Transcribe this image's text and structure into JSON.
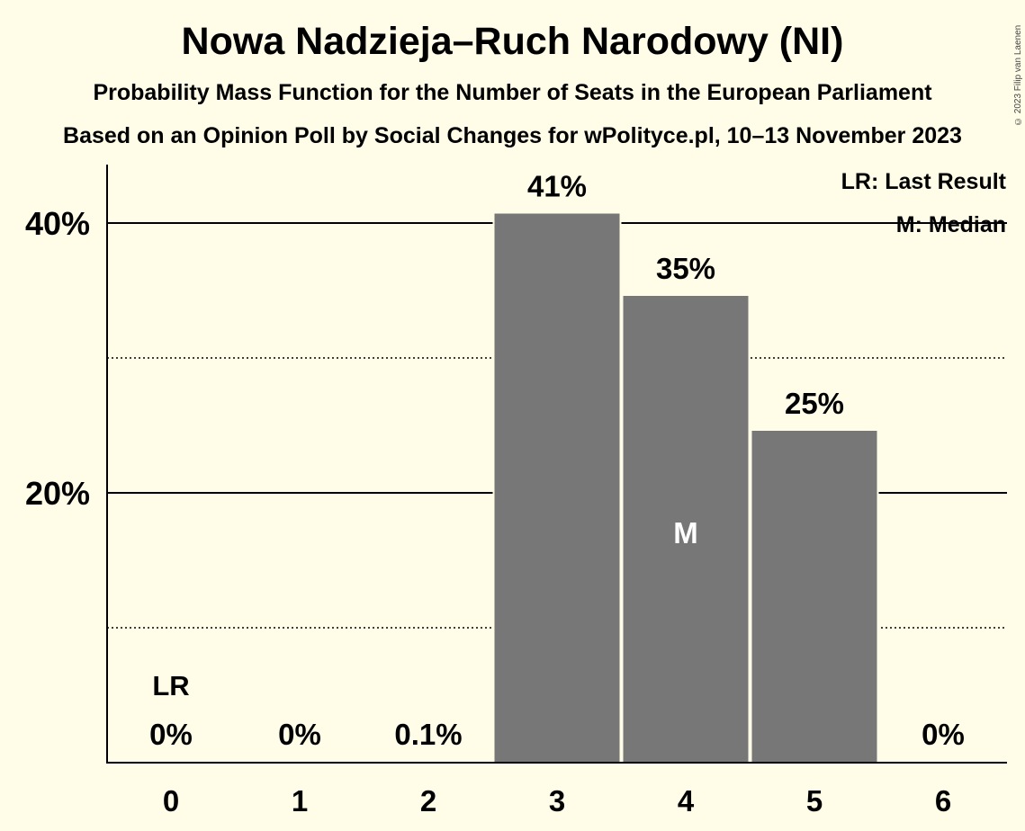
{
  "header": {
    "title": "Nowa Nadzieja–Ruch Narodowy (NI)",
    "subtitle": "Probability Mass Function for the Number of Seats in the European Parliament",
    "source": "Based on an Opinion Poll by Social Changes for wPolityce.pl, 10–13 November 2023",
    "copyright": "© 2023 Filip van Laenen"
  },
  "legend": {
    "last_result": "LR: Last Result",
    "median": "M: Median"
  },
  "chart_data": {
    "type": "bar",
    "categories": [
      "0",
      "1",
      "2",
      "3",
      "4",
      "5",
      "6"
    ],
    "values": [
      0,
      0,
      0.1,
      40.7,
      34.6,
      24.6,
      0
    ],
    "labels": [
      "0%",
      "0%",
      "0.1%",
      "41%",
      "35%",
      "25%",
      "0%"
    ],
    "ylim": [
      0,
      44
    ],
    "yticks": [
      {
        "value": 20,
        "label": "20%",
        "style": "solid"
      },
      {
        "value": 40,
        "label": "40%",
        "style": "solid"
      }
    ],
    "minor_gridlines": [
      10,
      30
    ],
    "legend_placement": "top-right",
    "last_result_index": 0,
    "last_result_label": "LR",
    "median_index": 4,
    "median_label": "M",
    "bar_color": "#777777",
    "background_color": "#FFFDE7"
  }
}
